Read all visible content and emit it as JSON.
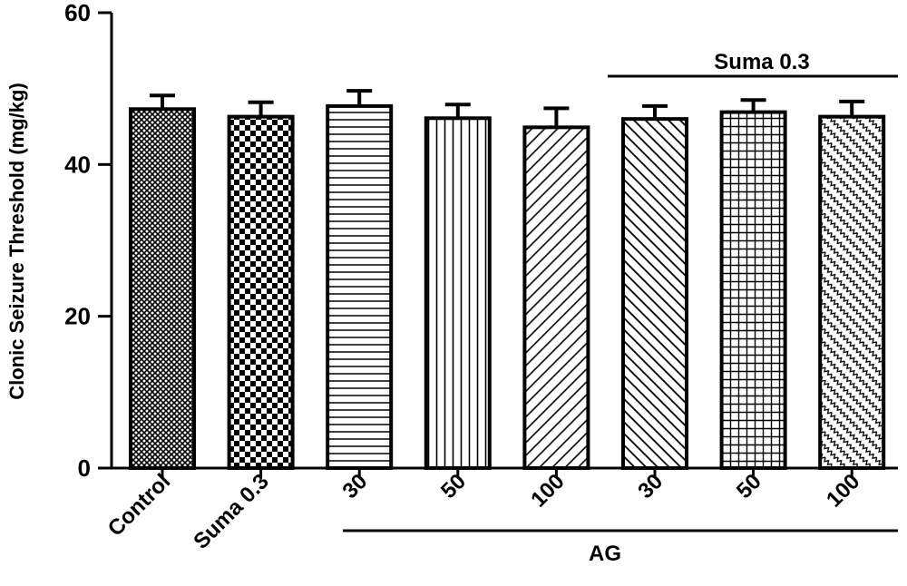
{
  "chart_data": {
    "type": "bar",
    "title": "",
    "xlabel": "",
    "ylabel": "Clonic Seizure Threshold (mg/kg)",
    "ylim": [
      0,
      60
    ],
    "yticks": [
      0,
      20,
      40,
      60
    ],
    "grid": false,
    "categories": [
      "Control",
      "Suma 0.3",
      "30",
      "50",
      "100",
      "30",
      "50",
      "100"
    ],
    "values": [
      47.3,
      46.3,
      47.7,
      46.1,
      44.9,
      46.0,
      46.9,
      46.3
    ],
    "errors": [
      1.8,
      1.9,
      2.0,
      1.8,
      2.5,
      1.7,
      1.6,
      2.0
    ],
    "patterns": [
      "crosshatch-fine",
      "checker",
      "horizontal",
      "vertical",
      "diagonal-up",
      "diagonal-down",
      "grid",
      "zigzag"
    ],
    "annotations": [
      {
        "text": "Suma 0.3",
        "position": "above bars 6-8"
      },
      {
        "text": "AG",
        "position": "below labels 3-8"
      }
    ]
  }
}
